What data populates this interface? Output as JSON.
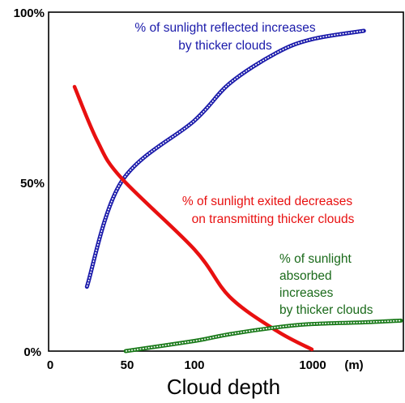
{
  "chart_data": {
    "type": "line",
    "title": "",
    "xlabel": "Cloud depth",
    "ylabel": "",
    "x_unit_label": "(m)",
    "x_ticks": [
      {
        "label": "0",
        "value": 0
      },
      {
        "label": "50",
        "value": 50
      },
      {
        "label": "100",
        "value": 100
      },
      {
        "label": "1000",
        "value": 1000
      }
    ],
    "y_ticks": [
      {
        "label": "0%",
        "value": 0
      },
      {
        "label": "50%",
        "value": 50
      },
      {
        "label": "100%",
        "value": 100
      }
    ],
    "ylim": [
      0,
      100
    ],
    "grid": false,
    "series": [
      {
        "name": "reflected",
        "color": "#1a1aaa",
        "style": "double-line",
        "annotation": [
          "% of sunlight reflected increases",
          "by thicker clouds"
        ],
        "annotation_color": "#1a1aaa",
        "points": [
          [
            30,
            19
          ],
          [
            50,
            50
          ],
          [
            100,
            68
          ],
          [
            200,
            79
          ],
          [
            500,
            88
          ],
          [
            1000,
            92
          ],
          [
            1500,
            94.5
          ]
        ]
      },
      {
        "name": "exited",
        "color": "#e81010",
        "style": "solid",
        "annotation": [
          "% of sunlight exited decreases",
          "on transmitting thicker clouds"
        ],
        "annotation_color": "#e81010",
        "points": [
          [
            25,
            78
          ],
          [
            35,
            62
          ],
          [
            50,
            51
          ],
          [
            100,
            30
          ],
          [
            200,
            16
          ],
          [
            500,
            6
          ],
          [
            1000,
            0.5
          ]
        ]
      },
      {
        "name": "absorbed",
        "color": "#1a7a1a",
        "style": "double-line",
        "annotation": [
          "% of sunlight",
          "absorbed",
          "increases",
          "by thicker clouds"
        ],
        "annotation_color": "#1a6a1a",
        "points": [
          [
            52,
            0
          ],
          [
            100,
            3
          ],
          [
            200,
            5
          ],
          [
            500,
            7
          ],
          [
            1000,
            8
          ],
          [
            1500,
            8.5
          ],
          [
            2000,
            9
          ]
        ]
      }
    ]
  }
}
